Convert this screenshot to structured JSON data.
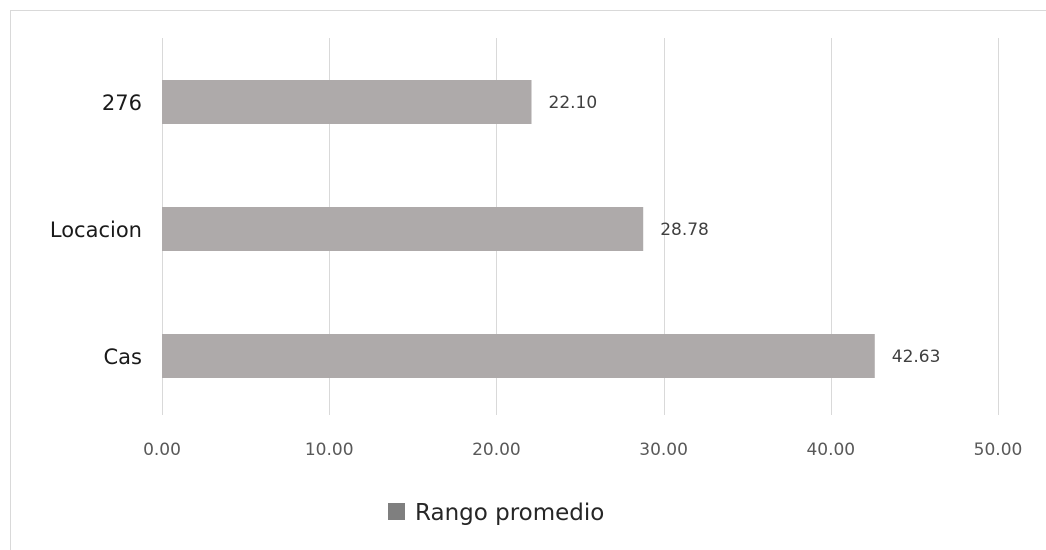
{
  "chart_data": {
    "type": "bar",
    "orientation": "horizontal",
    "categories": [
      "276",
      "Locacion",
      "Cas"
    ],
    "series": [
      {
        "name": "Rango promedio",
        "values": [
          22.1,
          28.78,
          42.63
        ],
        "value_labels": [
          "22.10",
          "28.78",
          "42.63"
        ],
        "color": "#aeaaaa"
      }
    ],
    "xlim": [
      0,
      50
    ],
    "x_ticks": [
      0,
      10,
      20,
      30,
      40,
      50
    ],
    "x_tick_labels": [
      "0.00",
      "10.00",
      "20.00",
      "30.00",
      "40.00",
      "50.00"
    ],
    "grid": true,
    "legend_position": "bottom"
  },
  "legend": {
    "label": "Rango promedio",
    "color": "#7f7f7f"
  }
}
